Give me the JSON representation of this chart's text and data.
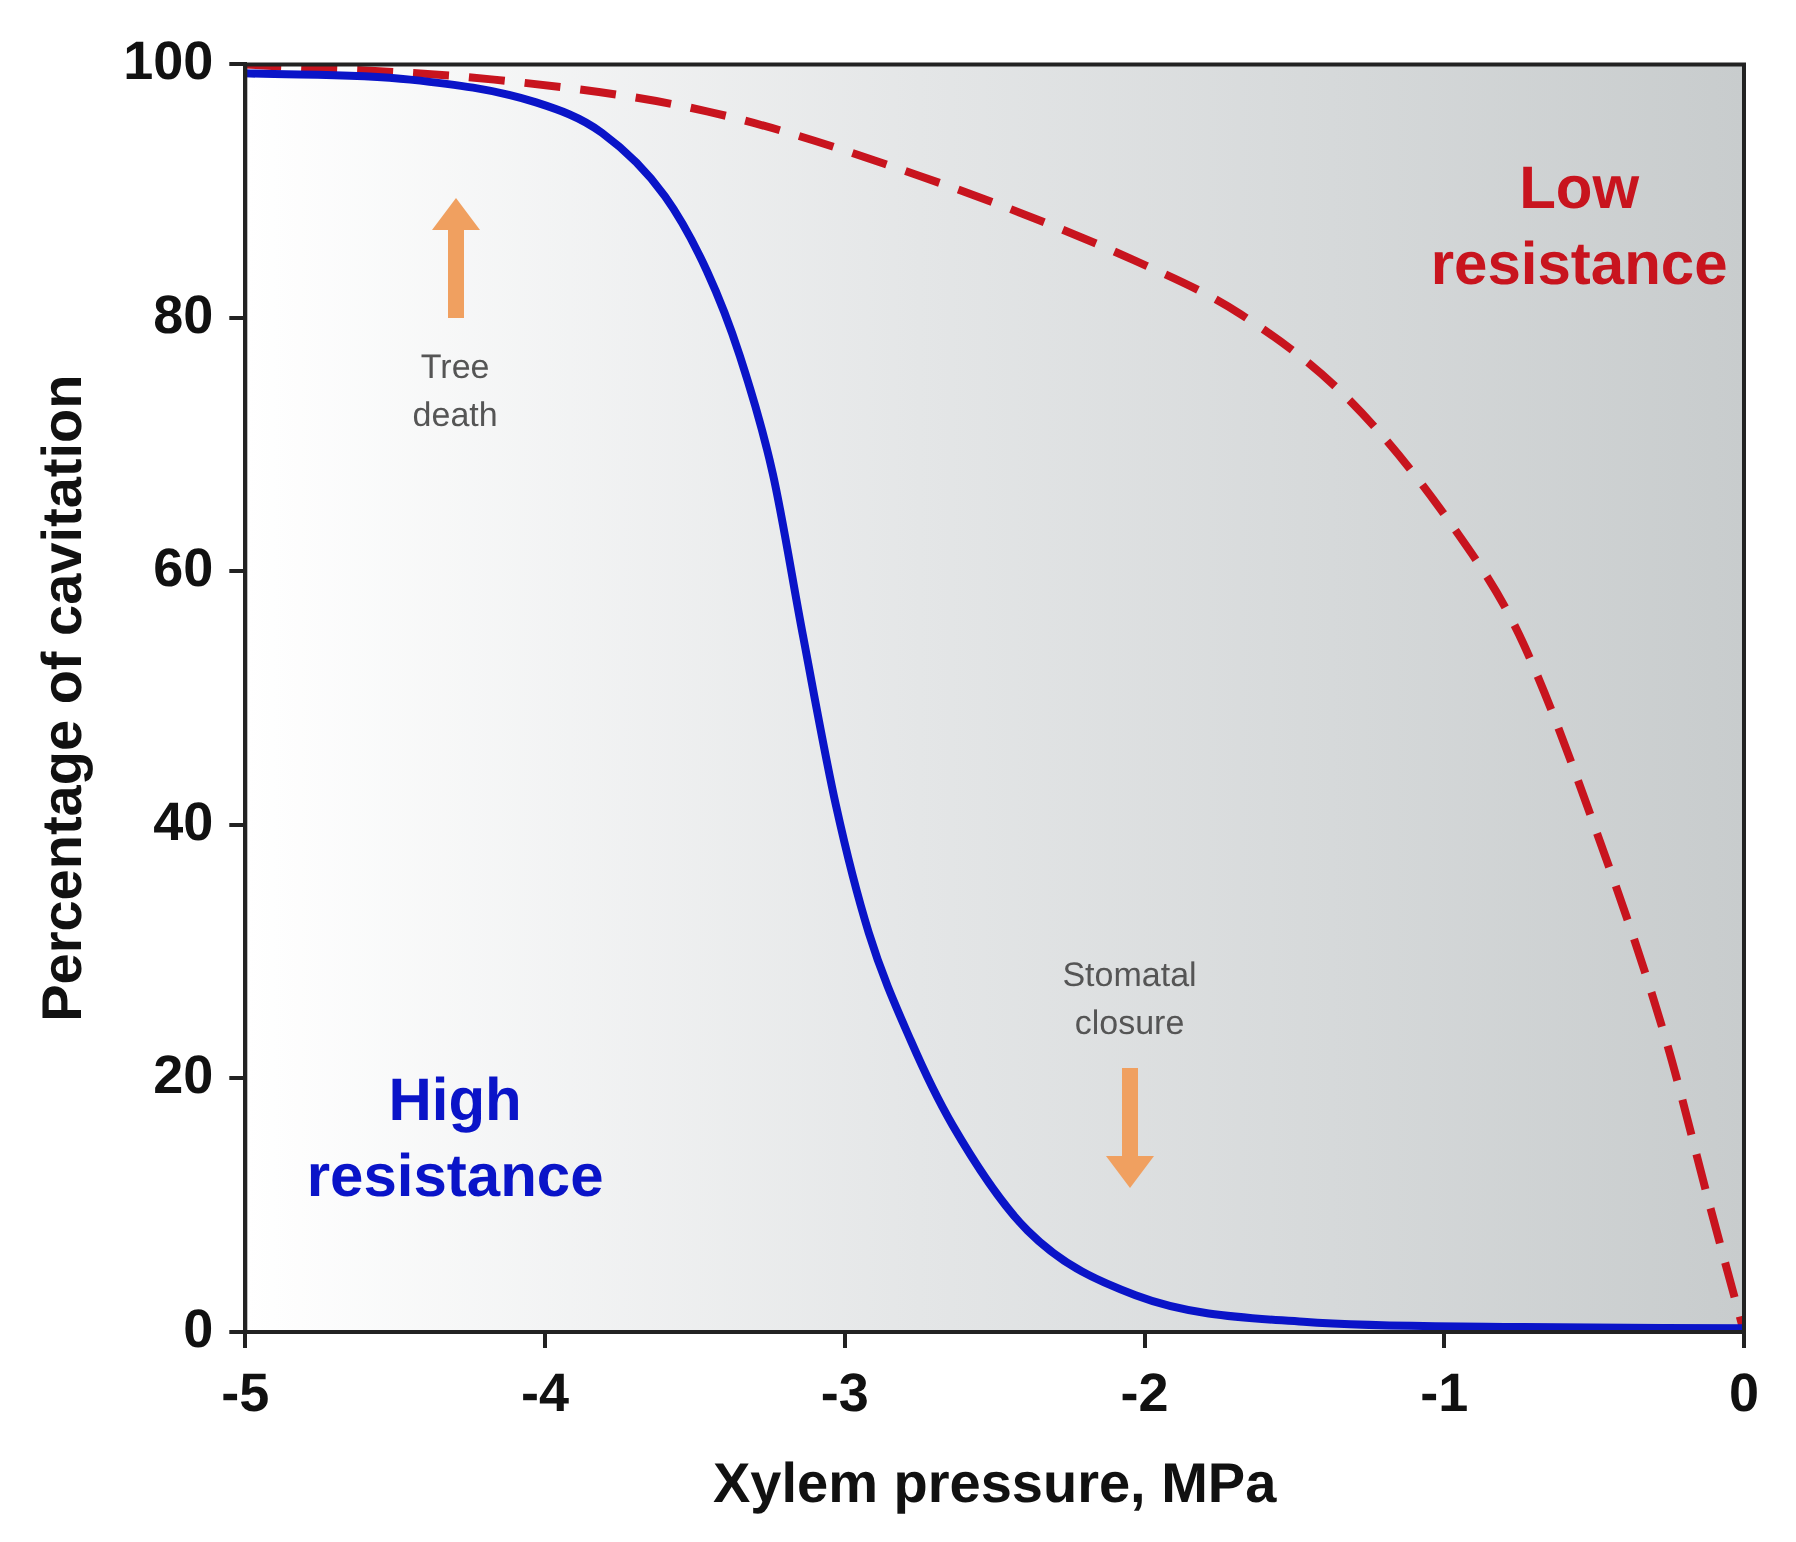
{
  "chart_data": {
    "type": "line",
    "xlabel": "Xylem pressure, MPa",
    "ylabel": "Percentage of cavitation",
    "xlim": [
      -5,
      0
    ],
    "xticks": [
      -5,
      -4,
      -3,
      -2,
      -1,
      0
    ],
    "ylim": [
      0,
      100
    ],
    "yticks": [
      0,
      20,
      40,
      60,
      80,
      100
    ],
    "grid": false,
    "legend": false,
    "marker": "none",
    "series": [
      {
        "name": "High resistance",
        "color": "#0a14c8",
        "line_style": "solid",
        "x": [
          -5,
          -4.45,
          -4.03,
          -3.81,
          -3.6,
          -3.46,
          -3.35,
          -3.24,
          -3.14,
          -3.03,
          -2.92,
          -2.78,
          -2.64,
          -2.39,
          -2.03,
          -1.47,
          -0.8,
          0
        ],
        "values": [
          99.3,
          98.8,
          97,
          94.6,
          89.6,
          83.7,
          77,
          67.7,
          55,
          41.6,
          31.5,
          23,
          16.3,
          8,
          2.9,
          0.8,
          0.4,
          0.3
        ]
      },
      {
        "name": "Low resistance",
        "color": "#c8141e",
        "line_style": "dashed",
        "x": [
          -5,
          -4.17,
          -3.46,
          -2.75,
          -2.03,
          -1.68,
          -1.32,
          -0.97,
          -0.75,
          -0.47,
          -0.26,
          -0.11,
          0
        ],
        "values": [
          100,
          98.8,
          96.3,
          91.2,
          84.5,
          80.3,
          73.6,
          63.5,
          55,
          38,
          23,
          9.6,
          0
        ]
      }
    ],
    "annotations": [
      "Tree death",
      "Stomatal closure"
    ]
  }
}
